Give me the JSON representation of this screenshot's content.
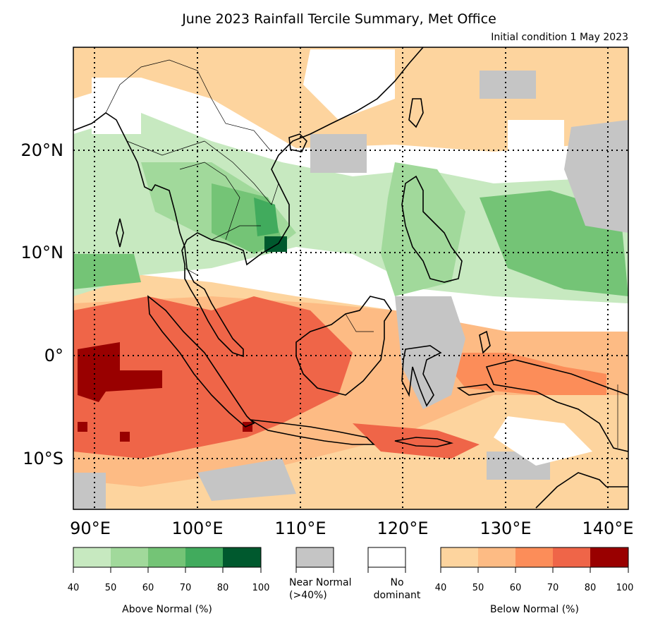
{
  "title": "June 2023 Rainfall Tercile Summary, Met Office",
  "subtitle": "Initial condition 1 May 2023",
  "map": {
    "lon_labels": [
      "90°E",
      "100°E",
      "110°E",
      "120°E",
      "130°E",
      "140°E"
    ],
    "lat_labels": [
      "20°N",
      "10°N",
      "0°",
      "10°S"
    ],
    "lon_range": [
      88,
      142
    ],
    "lat_range": [
      -15,
      30
    ]
  },
  "legend": {
    "above_normal": {
      "caption": "Above Normal (%)",
      "ticks": [
        "40",
        "50",
        "60",
        "70",
        "80",
        "100"
      ],
      "colors": [
        "#c7e9c0",
        "#a1d99b",
        "#74c476",
        "#41ab5d",
        "#00592e"
      ]
    },
    "near_normal": {
      "caption_line1": "Near Normal",
      "caption_line2": "(>40%)",
      "color": "#c5c5c5"
    },
    "no_dominant": {
      "caption_line1": "No",
      "caption_line2": "dominant",
      "color": "#ffffff"
    },
    "below_normal": {
      "caption": "Below Normal (%)",
      "ticks": [
        "40",
        "50",
        "60",
        "70",
        "80",
        "100"
      ],
      "colors": [
        "#fdd49e",
        "#fdbb84",
        "#fc8d59",
        "#ef6548",
        "#990000"
      ]
    }
  }
}
